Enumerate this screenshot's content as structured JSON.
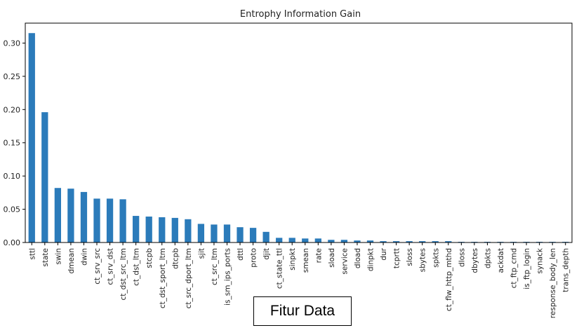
{
  "chart_data": {
    "type": "bar",
    "title": "Entrophy Information Gain",
    "xlabel": "Fitur Data",
    "ylabel": "",
    "ylim": [
      0,
      0.33
    ],
    "yticks": [
      "0.00",
      "0.05",
      "0.10",
      "0.15",
      "0.20",
      "0.25",
      "0.30"
    ],
    "bar_color": "#2b7bba",
    "grid": false,
    "legend": "none",
    "categories": [
      "sttl",
      "state",
      "swin",
      "dmean",
      "dwin",
      "ct_srv_src",
      "ct_srv_dst",
      "ct_dst_src_ltm",
      "ct_dst_ltm",
      "stcpb",
      "ct_dst_sport_ltm",
      "dtcpb",
      "ct_src_dport_ltm",
      "sjit",
      "ct_src_ltm",
      "is_sm_ips_ports",
      "dttl",
      "proto",
      "djit",
      "ct_state_ttl",
      "sinpkt",
      "smean",
      "rate",
      "sload",
      "service",
      "dload",
      "dinpkt",
      "dur",
      "tcprtt",
      "sloss",
      "sbytes",
      "spkts",
      "ct_flw_http_mthd",
      "dloss",
      "dbytes",
      "dpkts",
      "ackdat",
      "ct_ftp_cmd",
      "is_ftp_login",
      "synack",
      "response_body_len",
      "trans_depth"
    ],
    "values": [
      0.315,
      0.196,
      0.082,
      0.081,
      0.076,
      0.066,
      0.066,
      0.065,
      0.04,
      0.039,
      0.038,
      0.037,
      0.035,
      0.028,
      0.027,
      0.027,
      0.023,
      0.022,
      0.016,
      0.007,
      0.007,
      0.006,
      0.006,
      0.004,
      0.004,
      0.003,
      0.003,
      0.002,
      0.002,
      0.002,
      0.002,
      0.002,
      0.002,
      0.001,
      0.001,
      0.001,
      0.001,
      0.001,
      0.001,
      0.001,
      0.001,
      0.001
    ]
  }
}
